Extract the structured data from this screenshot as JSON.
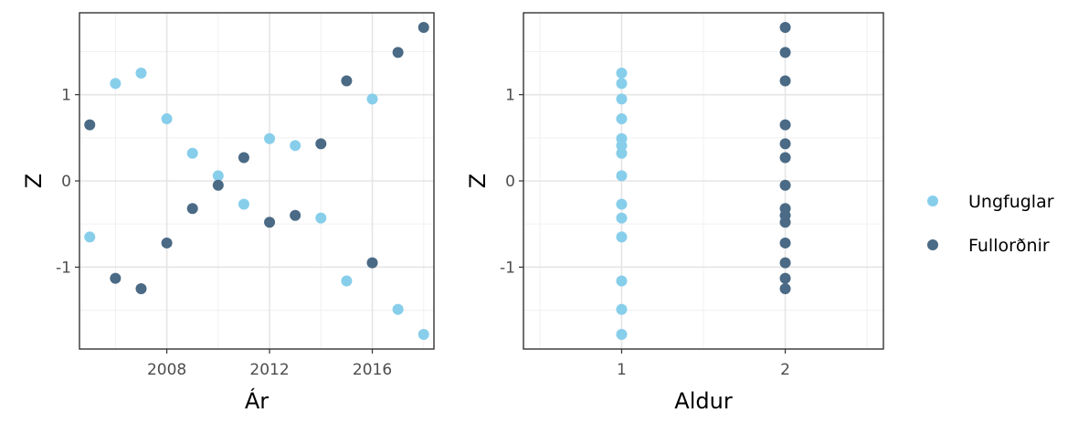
{
  "chart_data": [
    {
      "type": "scatter",
      "xlabel": "Ár",
      "ylabel": "Z",
      "xlim": [
        2004.6,
        2018.4
      ],
      "ylim": [
        -1.95,
        1.95
      ],
      "xticks": [
        2008,
        2012,
        2016
      ],
      "xtick_labels": [
        "2008",
        "2012",
        "2016"
      ],
      "yticks": [
        -1,
        0,
        1
      ],
      "ytick_labels": [
        "-1",
        "0",
        "1"
      ],
      "grid": true,
      "series": [
        {
          "name": "Ungfuglar",
          "color": "#87ceeb",
          "points": [
            [
              2005,
              -0.65
            ],
            [
              2006,
              1.13
            ],
            [
              2007,
              1.25
            ],
            [
              2008,
              0.72
            ],
            [
              2009,
              0.32
            ],
            [
              2010,
              0.06
            ],
            [
              2011,
              -0.27
            ],
            [
              2012,
              0.49
            ],
            [
              2013,
              0.41
            ],
            [
              2014,
              -0.43
            ],
            [
              2015,
              -1.16
            ],
            [
              2016,
              0.95
            ],
            [
              2017,
              -1.49
            ],
            [
              2018,
              -1.78
            ]
          ]
        },
        {
          "name": "Fullorðnir",
          "color": "#4a6a85",
          "points": [
            [
              2005,
              0.65
            ],
            [
              2006,
              -1.13
            ],
            [
              2007,
              -1.25
            ],
            [
              2008,
              -0.72
            ],
            [
              2009,
              -0.32
            ],
            [
              2010,
              -0.05
            ],
            [
              2011,
              0.27
            ],
            [
              2012,
              -0.48
            ],
            [
              2013,
              -0.4
            ],
            [
              2014,
              0.43
            ],
            [
              2015,
              1.16
            ],
            [
              2016,
              -0.95
            ],
            [
              2017,
              1.49
            ],
            [
              2018,
              1.78
            ]
          ]
        }
      ]
    },
    {
      "type": "scatter",
      "xlabel": "Aldur",
      "ylabel": "Z",
      "xlim": [
        0.4,
        2.6
      ],
      "ylim": [
        -1.95,
        1.95
      ],
      "xticks": [
        1,
        2
      ],
      "xtick_labels": [
        "1",
        "2"
      ],
      "yticks": [
        -1,
        0,
        1
      ],
      "ytick_labels": [
        "-1",
        "0",
        "1"
      ],
      "grid": true,
      "series": [
        {
          "name": "Ungfuglar",
          "color": "#87ceeb",
          "points": [
            [
              1,
              -0.65
            ],
            [
              1,
              1.13
            ],
            [
              1,
              1.25
            ],
            [
              1,
              0.72
            ],
            [
              1,
              0.32
            ],
            [
              1,
              0.06
            ],
            [
              1,
              -0.27
            ],
            [
              1,
              0.49
            ],
            [
              1,
              0.41
            ],
            [
              1,
              -0.43
            ],
            [
              1,
              -1.16
            ],
            [
              1,
              0.95
            ],
            [
              1,
              -1.49
            ],
            [
              1,
              -1.78
            ]
          ]
        },
        {
          "name": "Fullorðnir",
          "color": "#4a6a85",
          "points": [
            [
              2,
              0.65
            ],
            [
              2,
              -1.13
            ],
            [
              2,
              -1.25
            ],
            [
              2,
              -0.72
            ],
            [
              2,
              -0.32
            ],
            [
              2,
              -0.05
            ],
            [
              2,
              0.27
            ],
            [
              2,
              -0.48
            ],
            [
              2,
              -0.4
            ],
            [
              2,
              0.43
            ],
            [
              2,
              1.16
            ],
            [
              2,
              -0.95
            ],
            [
              2,
              1.49
            ],
            [
              2,
              1.78
            ]
          ]
        }
      ]
    }
  ],
  "legend": {
    "position": "right",
    "items": [
      {
        "label": "Ungfuglar",
        "color": "#87ceeb"
      },
      {
        "label": "Fullorðnir",
        "color": "#4a6a85"
      }
    ]
  }
}
